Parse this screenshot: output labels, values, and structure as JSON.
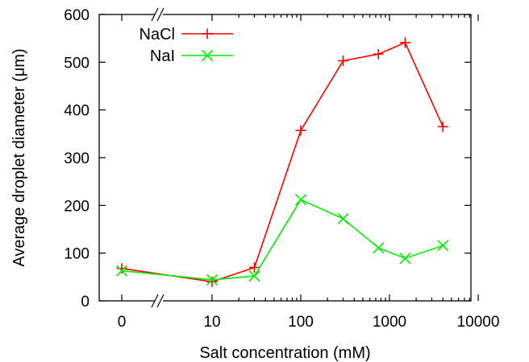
{
  "chart_data": {
    "type": "line",
    "xlabel": "Salt concentration (mM)",
    "ylabel": "Average droplet diameter (μm)",
    "ylim": [
      0,
      600
    ],
    "yticks": [
      0,
      100,
      200,
      300,
      400,
      500,
      600
    ],
    "x_scale": "log with broken axis (0 placed before break)",
    "xticks": [
      {
        "value": 0,
        "label": "0"
      },
      {
        "value": 10,
        "label": "10"
      },
      {
        "value": 100,
        "label": "100"
      },
      {
        "value": 1000,
        "label": "1000"
      },
      {
        "value": 10000,
        "label": "10000"
      }
    ],
    "grid": false,
    "legend": "top-left",
    "series": [
      {
        "name": "NaCl",
        "color": "#ff0000",
        "marker": "plus",
        "x": [
          0,
          10,
          30,
          100,
          300,
          750,
          1500,
          4000
        ],
        "y": [
          68,
          40,
          70,
          357,
          503,
          517,
          541,
          365
        ]
      },
      {
        "name": "NaI",
        "color": "#00ee00",
        "marker": "cross",
        "x": [
          0,
          10,
          30,
          100,
          300,
          750,
          1500,
          4000
        ],
        "y": [
          63,
          44,
          52,
          212,
          172,
          111,
          89,
          116
        ]
      }
    ]
  }
}
